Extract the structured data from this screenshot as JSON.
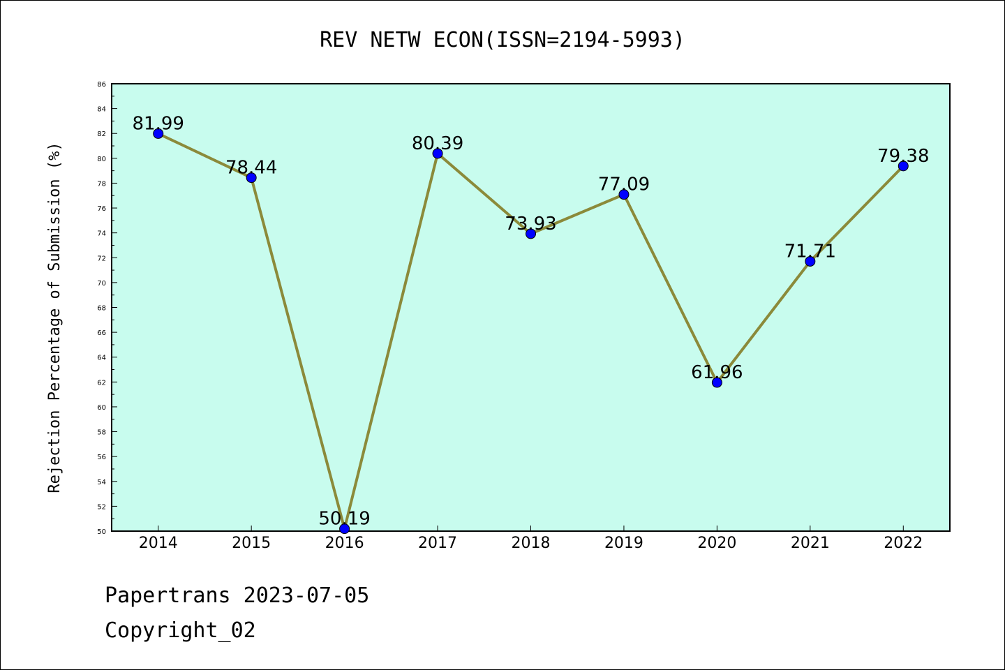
{
  "chart_data": {
    "type": "line",
    "title": "REV NETW ECON(ISSN=2194-5993)",
    "xlabel": "",
    "ylabel": "Rejection Percentage of Submission (%)",
    "categories": [
      "2014",
      "2015",
      "2016",
      "2017",
      "2018",
      "2019",
      "2020",
      "2021",
      "2022"
    ],
    "series": [
      {
        "values": [
          81.99,
          78.44,
          50.19,
          80.39,
          73.93,
          77.09,
          61.96,
          71.71,
          79.38
        ],
        "labels": [
          "81.99",
          "78.44",
          "50.19",
          "80.39",
          "73.93",
          "77.09",
          "61.96",
          "71.71",
          "79.38"
        ]
      }
    ],
    "ylim": [
      50,
      86
    ],
    "yticks": [
      50,
      52,
      54,
      56,
      58,
      60,
      62,
      64,
      66,
      68,
      70,
      72,
      74,
      76,
      78,
      80,
      82,
      84,
      86
    ],
    "grid": false,
    "legend": "none",
    "colors": {
      "plot_background": "#c8fcee",
      "line": "#8b8a3a",
      "marker": "#0000ff"
    }
  },
  "footer": {
    "line1": "Papertrans 2023-07-05",
    "line2": "Copyright_02"
  }
}
